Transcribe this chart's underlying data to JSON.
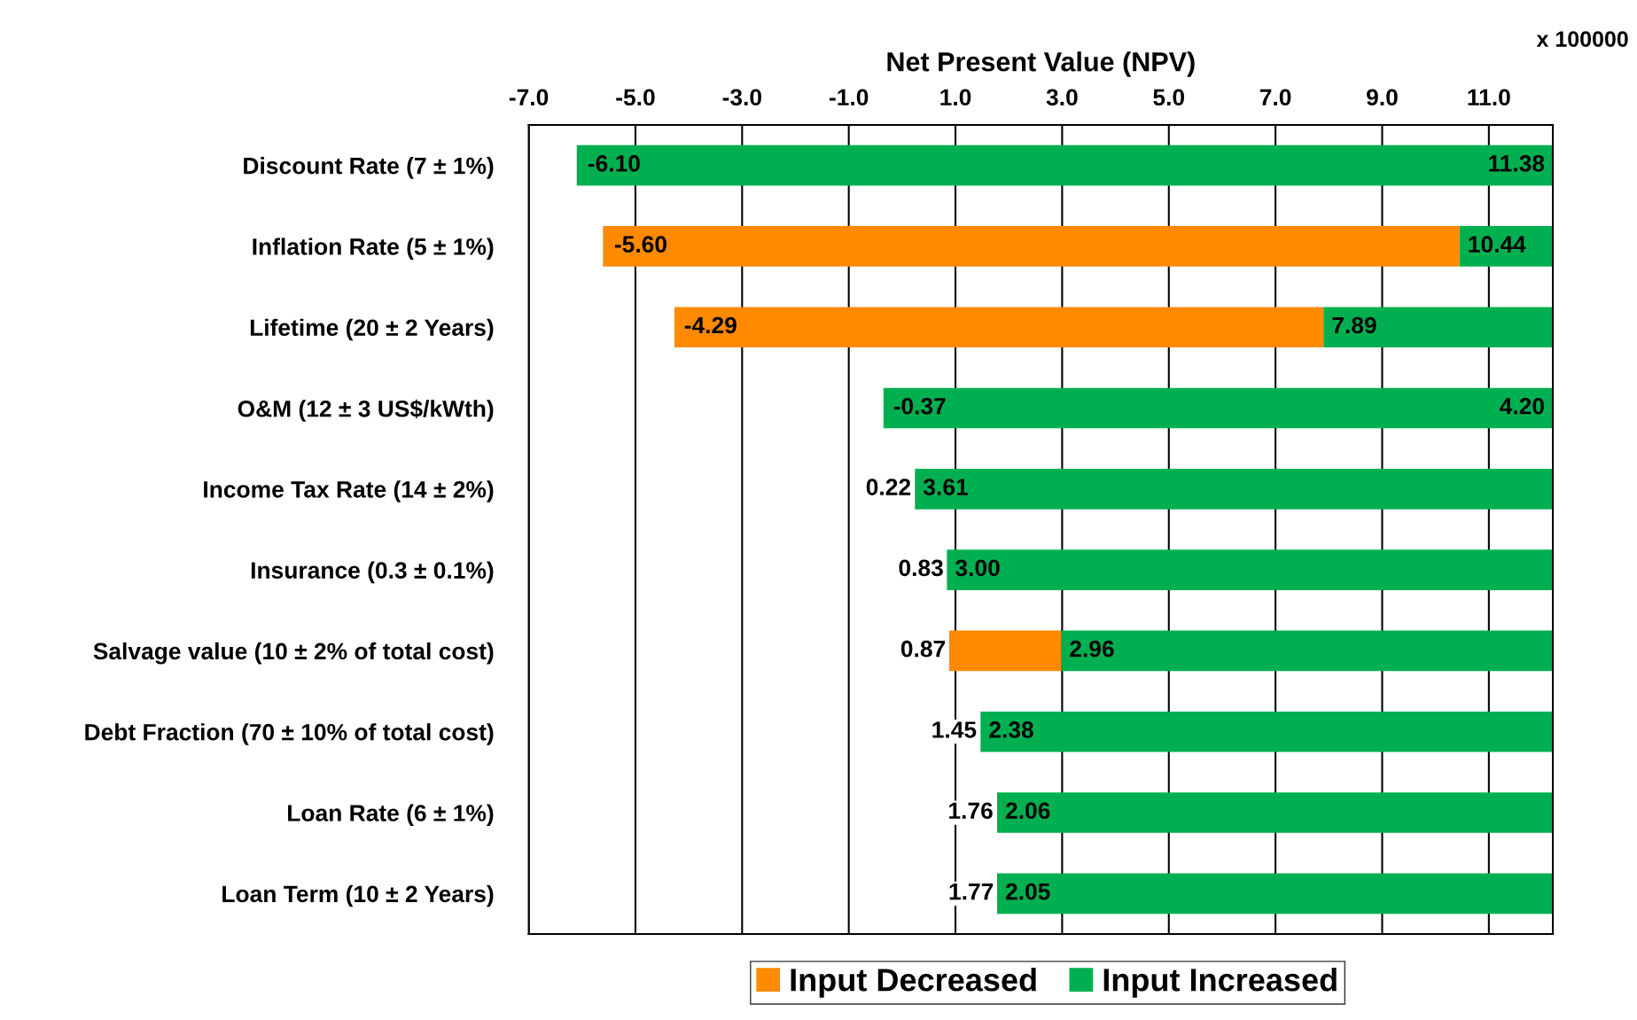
{
  "chart_data": {
    "type": "bar",
    "orientation": "horizontal",
    "xlabel": "Net Present Value (NPV)",
    "categories": [
      "Discount Rate (7 ± 1%)",
      "Inflation Rate (5 ± 1%)",
      "Lifetime (20 ± 2 Years)",
      "O&M (12 ± 3 US$/kWth)",
      "Income Tax Rate (14 ± 2%)",
      "Insurance (0.3 ± 0.1%)",
      "Salvage value (10 ± 2% of total cost)",
      "Debt Fraction (70 ± 10% of total cost)",
      "Loan Rate (6 ± 1%)",
      "Loan Term (10 ± 2 Years)"
    ],
    "series": [
      {
        "name": "Input Decreased",
        "color": "#ff8a00",
        "base": [
          null,
          -5.61,
          -4.27,
          null,
          null,
          null,
          0.88,
          null,
          null,
          null
        ],
        "values": [
          null,
          16.06,
          12.17,
          null,
          null,
          null,
          2.1,
          null,
          null,
          null
        ]
      },
      {
        "name": "Input Increased",
        "color": "#00b050",
        "base": [
          -6.1,
          10.45,
          7.9,
          -0.35,
          0.24,
          0.84,
          2.98,
          1.47,
          1.78,
          1.78
        ],
        "values": [
          18.3,
          1.75,
          4.3,
          12.55,
          11.96,
          11.36,
          9.22,
          10.73,
          10.42,
          10.42
        ]
      }
    ],
    "annotations": [
      "x 100000",
      {
        "text": "-6.10",
        "x": -6.1,
        "y": "Discount Rate (7 ± 1%)"
      },
      {
        "text": "-5.60",
        "x": -5.6,
        "y": "Inflation Rate (5 ± 1%)"
      },
      {
        "text": "-4.29",
        "x": -4.29,
        "y": "Lifetime (20 ± 2 Years)"
      },
      {
        "text": "-0.37",
        "x": -0.37,
        "y": "O&M (12 ± 3 US$/kWth)"
      },
      {
        "text": "0.22",
        "x": 0.22,
        "y": "Income Tax Rate (14 ± 2%)"
      },
      {
        "text": "0.83",
        "x": 0.83,
        "y": "Insurance (0.3 ± 0.1%)"
      },
      {
        "text": "0.87",
        "x": 0.87,
        "y": "Salvage value (10 ± 2% of total cost)"
      },
      {
        "text": "1.45",
        "x": 1.45,
        "y": "Debt Fraction (70 ± 10% of total cost)"
      },
      {
        "text": "1.76",
        "x": 1.76,
        "y": "Loan Rate (6 ± 1%)"
      },
      {
        "text": "1.77",
        "x": 1.77,
        "y": "Loan Term (10 ± 2 Years)"
      },
      "11.38",
      "10.44",
      "7.89",
      "4.20",
      "3.61",
      "3.00",
      "2.96",
      "2.38",
      "2.06",
      "2.05"
    ],
    "xlim": [
      -7,
      12.2
    ],
    "xticks": [
      {
        "value": -7,
        "label": "-7.0"
      },
      {
        "value": -5,
        "label": "-5.0"
      },
      {
        "value": -3,
        "label": "-3.0"
      },
      {
        "value": -1,
        "label": "-1.0"
      },
      {
        "value": 1,
        "label": "1.0"
      },
      {
        "value": 3,
        "label": "3.0"
      },
      {
        "value": 5,
        "label": "5.0"
      },
      {
        "value": 7,
        "label": "7.0"
      },
      {
        "value": 9,
        "label": "9.0"
      },
      {
        "value": 11,
        "label": "11.0"
      }
    ],
    "grid": "x",
    "legend": "bottom"
  }
}
